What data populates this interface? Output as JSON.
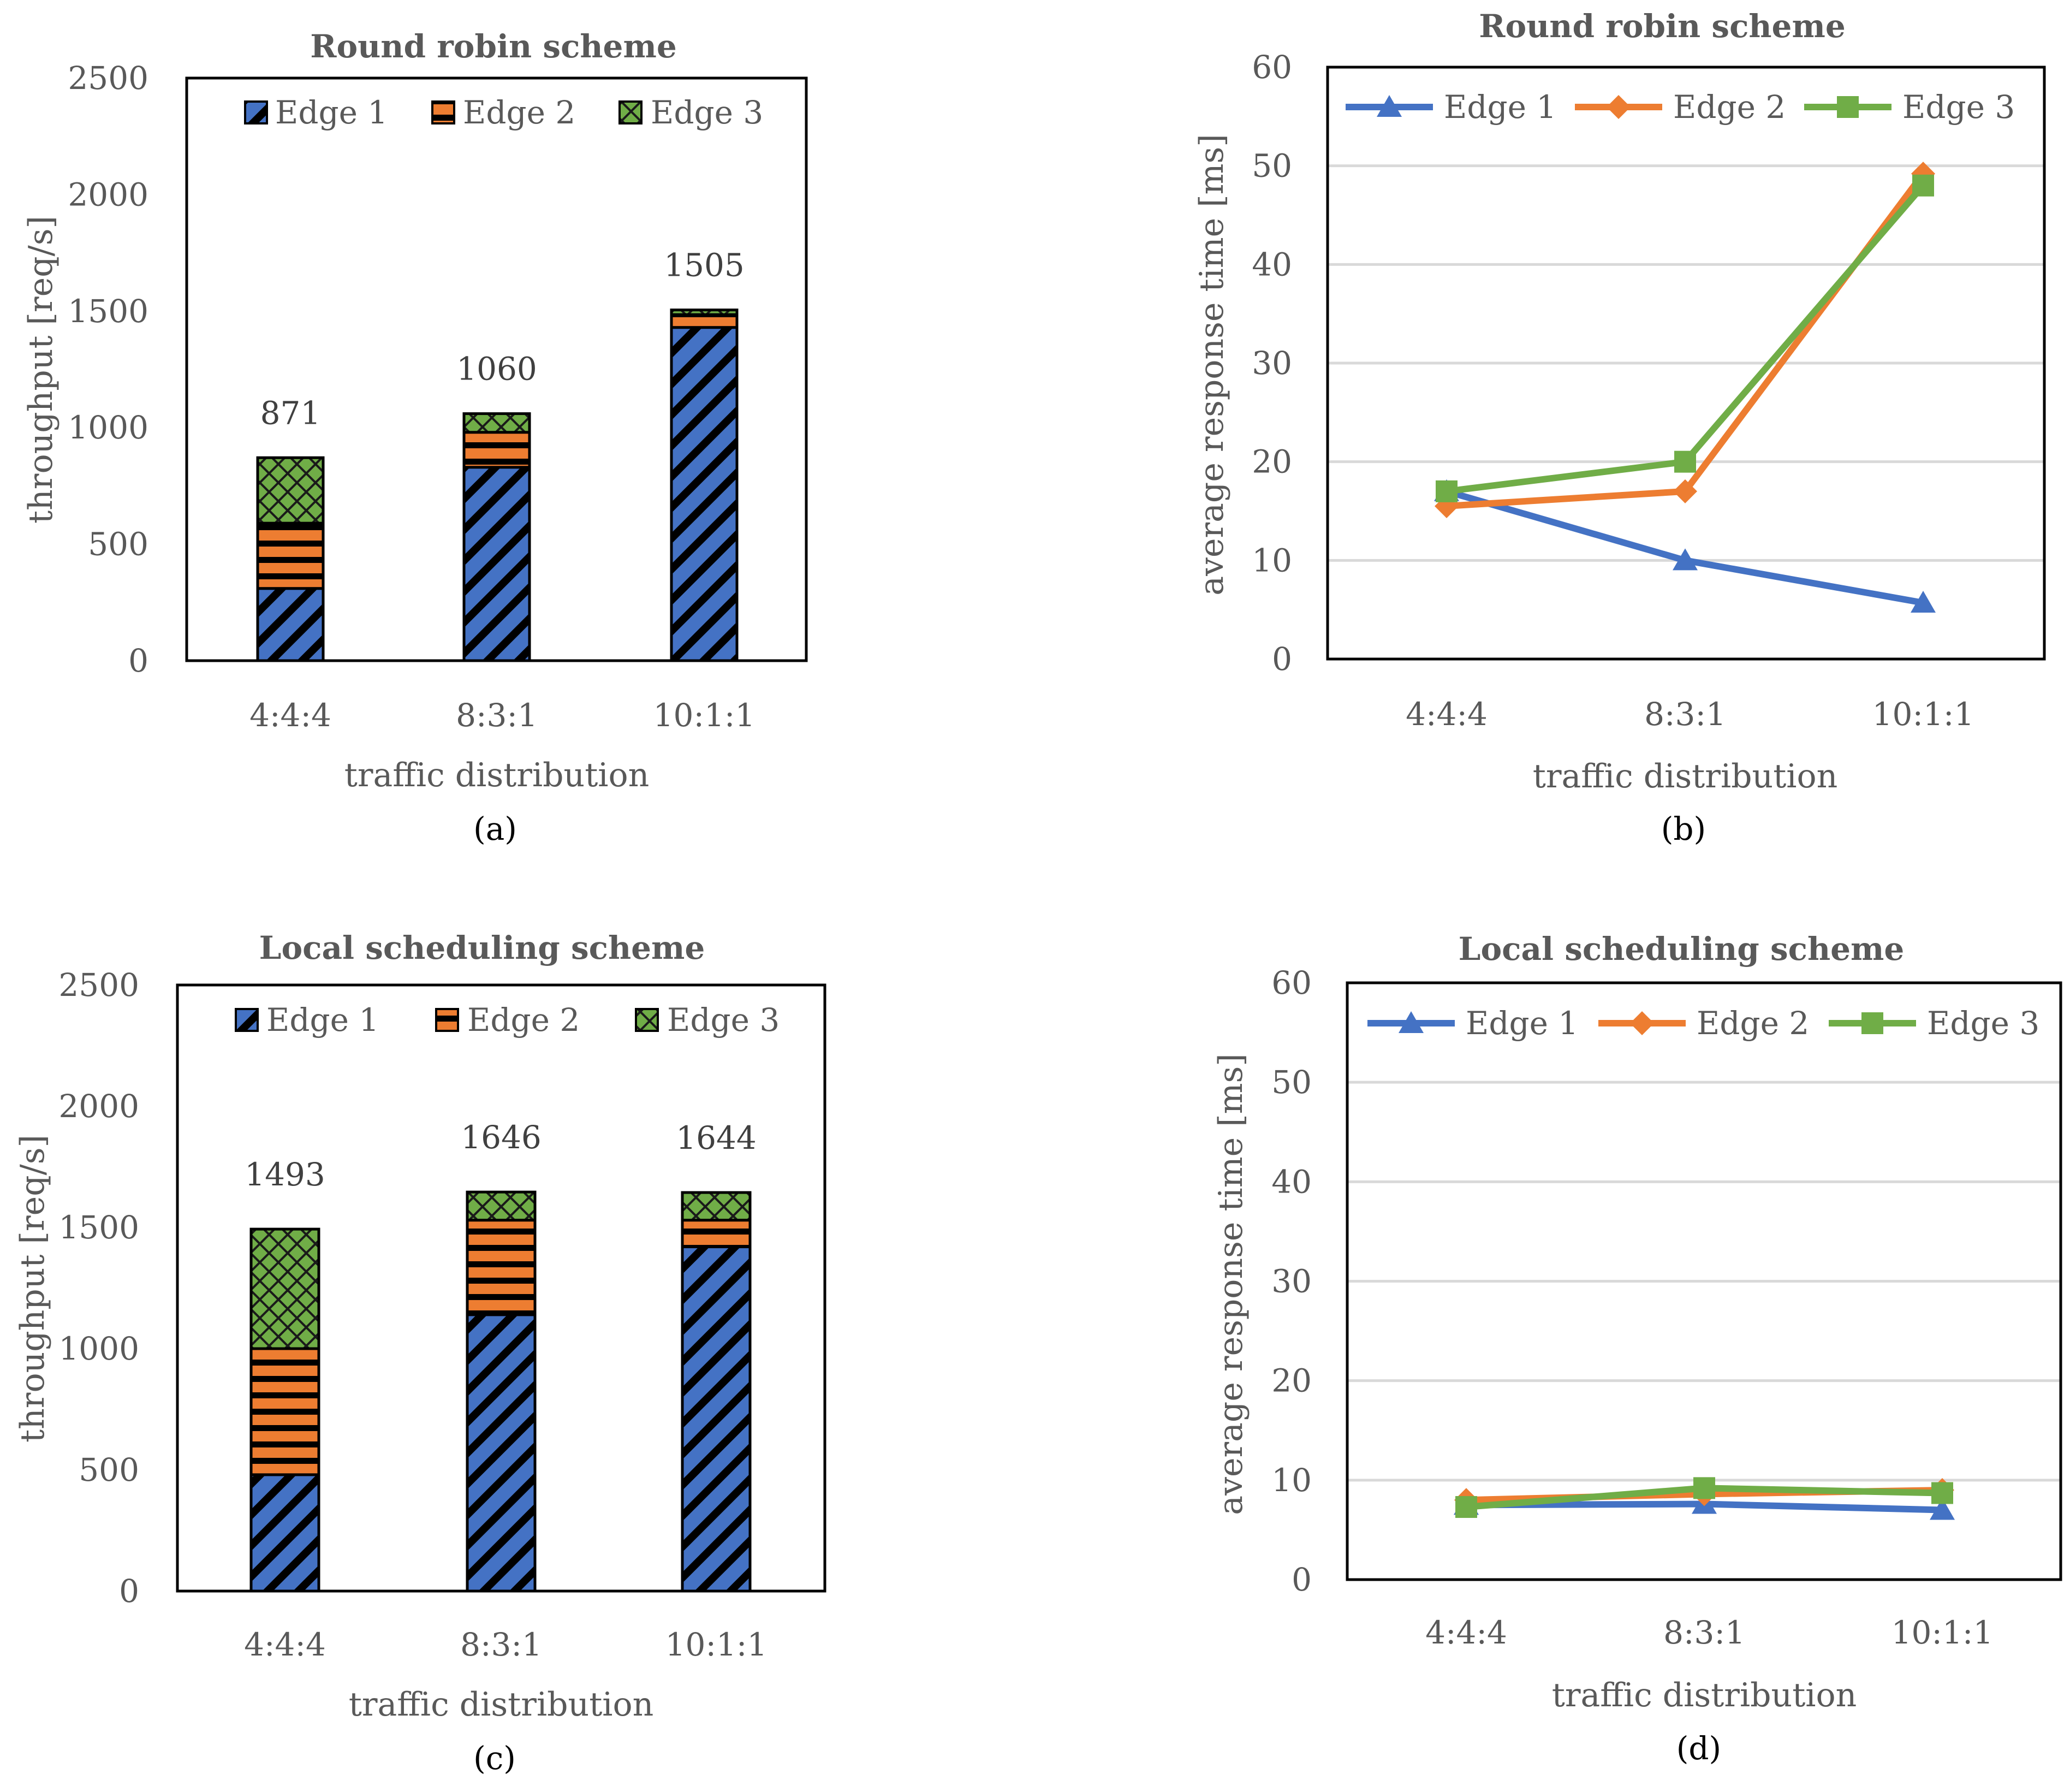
{
  "colors": {
    "edge1": "#4472c4",
    "edge2": "#ed7d31",
    "edge3": "#70ad47",
    "text": "#595959",
    "grid": "#d9d9d9"
  },
  "chart_data": [
    {
      "type": "bar",
      "stacked": true,
      "panel": "a",
      "caption": "(a)",
      "title": "Round robin scheme",
      "xlabel": "traffic distribution",
      "ylabel": "throughput [req/s]",
      "ylim": [
        0,
        2500
      ],
      "yticks": [
        0,
        500,
        1000,
        1500,
        2000,
        2500
      ],
      "categories": [
        "4:4:4",
        "8:3:1",
        "10:1:1"
      ],
      "series": [
        {
          "name": "Edge 1",
          "values": [
            310,
            830,
            1430
          ]
        },
        {
          "name": "Edge 2",
          "values": [
            280,
            150,
            55
          ]
        },
        {
          "name": "Edge 3",
          "values": [
            281,
            80,
            20
          ]
        }
      ],
      "totals": [
        "871",
        "1060",
        "1505"
      ],
      "legend": "top"
    },
    {
      "type": "line",
      "panel": "b",
      "caption": "(b)",
      "title": "Round robin scheme",
      "xlabel": "traffic distribution",
      "ylabel": "average response time [ms]",
      "ylim": [
        0,
        60
      ],
      "yticks": [
        0,
        10,
        20,
        30,
        40,
        50,
        60
      ],
      "grid": true,
      "categories": [
        "4:4:4",
        "8:3:1",
        "10:1:1"
      ],
      "series": [
        {
          "name": "Edge 1",
          "values": [
            17,
            10,
            5.7
          ]
        },
        {
          "name": "Edge 2",
          "values": [
            15.5,
            17,
            49.2
          ]
        },
        {
          "name": "Edge 3",
          "values": [
            17,
            20,
            48
          ]
        }
      ],
      "legend": "top"
    },
    {
      "type": "bar",
      "stacked": true,
      "panel": "c",
      "caption": "(c)",
      "title": "Local scheduling scheme",
      "xlabel": "traffic distribution",
      "ylabel": "throughput [req/s]",
      "ylim": [
        0,
        2500
      ],
      "yticks": [
        0,
        500,
        1000,
        1500,
        2000,
        2500
      ],
      "categories": [
        "4:4:4",
        "8:3:1",
        "10:1:1"
      ],
      "series": [
        {
          "name": "Edge 1",
          "values": [
            480,
            1140,
            1420
          ]
        },
        {
          "name": "Edge 2",
          "values": [
            520,
            390,
            110
          ]
        },
        {
          "name": "Edge 3",
          "values": [
            493,
            116,
            114
          ]
        }
      ],
      "totals": [
        "1493",
        "1646",
        "1644"
      ],
      "legend": "top"
    },
    {
      "type": "line",
      "panel": "d",
      "caption": "(d)",
      "title": "Local scheduling scheme",
      "xlabel": "traffic distribution",
      "ylabel": "average response time [ms]",
      "ylim": [
        0,
        60
      ],
      "yticks": [
        0,
        10,
        20,
        30,
        40,
        50,
        60
      ],
      "grid": true,
      "categories": [
        "4:4:4",
        "8:3:1",
        "10:1:1"
      ],
      "series": [
        {
          "name": "Edge 1",
          "values": [
            7.5,
            7.6,
            7.0
          ]
        },
        {
          "name": "Edge 2",
          "values": [
            8.0,
            8.6,
            9.0
          ]
        },
        {
          "name": "Edge 3",
          "values": [
            7.3,
            9.2,
            8.7
          ]
        }
      ],
      "legend": "top"
    }
  ]
}
